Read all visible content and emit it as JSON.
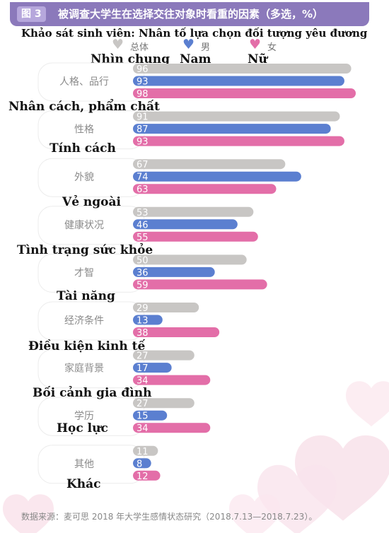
{
  "header": {
    "figure_label": "图 3",
    "title": "被调查大学生在选择交往对象时看重的因素（多选，%）"
  },
  "survey_title": "Khảo sát sinh viên: Nhân tố lựa chọn đối tượng yêu đương",
  "legend": [
    {
      "name": "总体",
      "vn": "Nhìn chung",
      "color": "#c8c6c4"
    },
    {
      "name": "男",
      "vn": "Nam",
      "color": "#5b7fd0"
    },
    {
      "name": "女",
      "vn": "Nữ",
      "color": "#e36ea8"
    }
  ],
  "chart_data": {
    "type": "bar",
    "orientation": "horizontal",
    "title": "被调查大学生在选择交往对象时看重的因素（多选，%）",
    "categories": [
      "人格、品行",
      "性格",
      "外貌",
      "健康状况",
      "才智",
      "经济条件",
      "家庭背景",
      "学历",
      "其他"
    ],
    "categories_vn": [
      "Nhân cách, phẩm chất",
      "Tính cách",
      "Vẻ ngoài",
      "Tình trạng sức khỏe",
      "Tài năng",
      "Điều kiện kinh tế",
      "Bối cảnh gia đình",
      "Học lực",
      "Khác"
    ],
    "series": [
      {
        "name": "总体",
        "color": "#c8c6c4",
        "values": [
          96,
          91,
          67,
          53,
          50,
          29,
          27,
          27,
          11
        ]
      },
      {
        "name": "男",
        "color": "#5b7fd0",
        "values": [
          93,
          87,
          74,
          46,
          36,
          13,
          17,
          15,
          8
        ]
      },
      {
        "name": "女",
        "color": "#e36ea8",
        "values": [
          98,
          93,
          63,
          55,
          59,
          38,
          34,
          34,
          12
        ]
      }
    ],
    "xlim": [
      0,
      100
    ],
    "grid": false,
    "legend_position": "top"
  },
  "source": "数据来源：麦可思 2018 年大学生感情状态研究（2018.7.13—2018.7.23）。"
}
